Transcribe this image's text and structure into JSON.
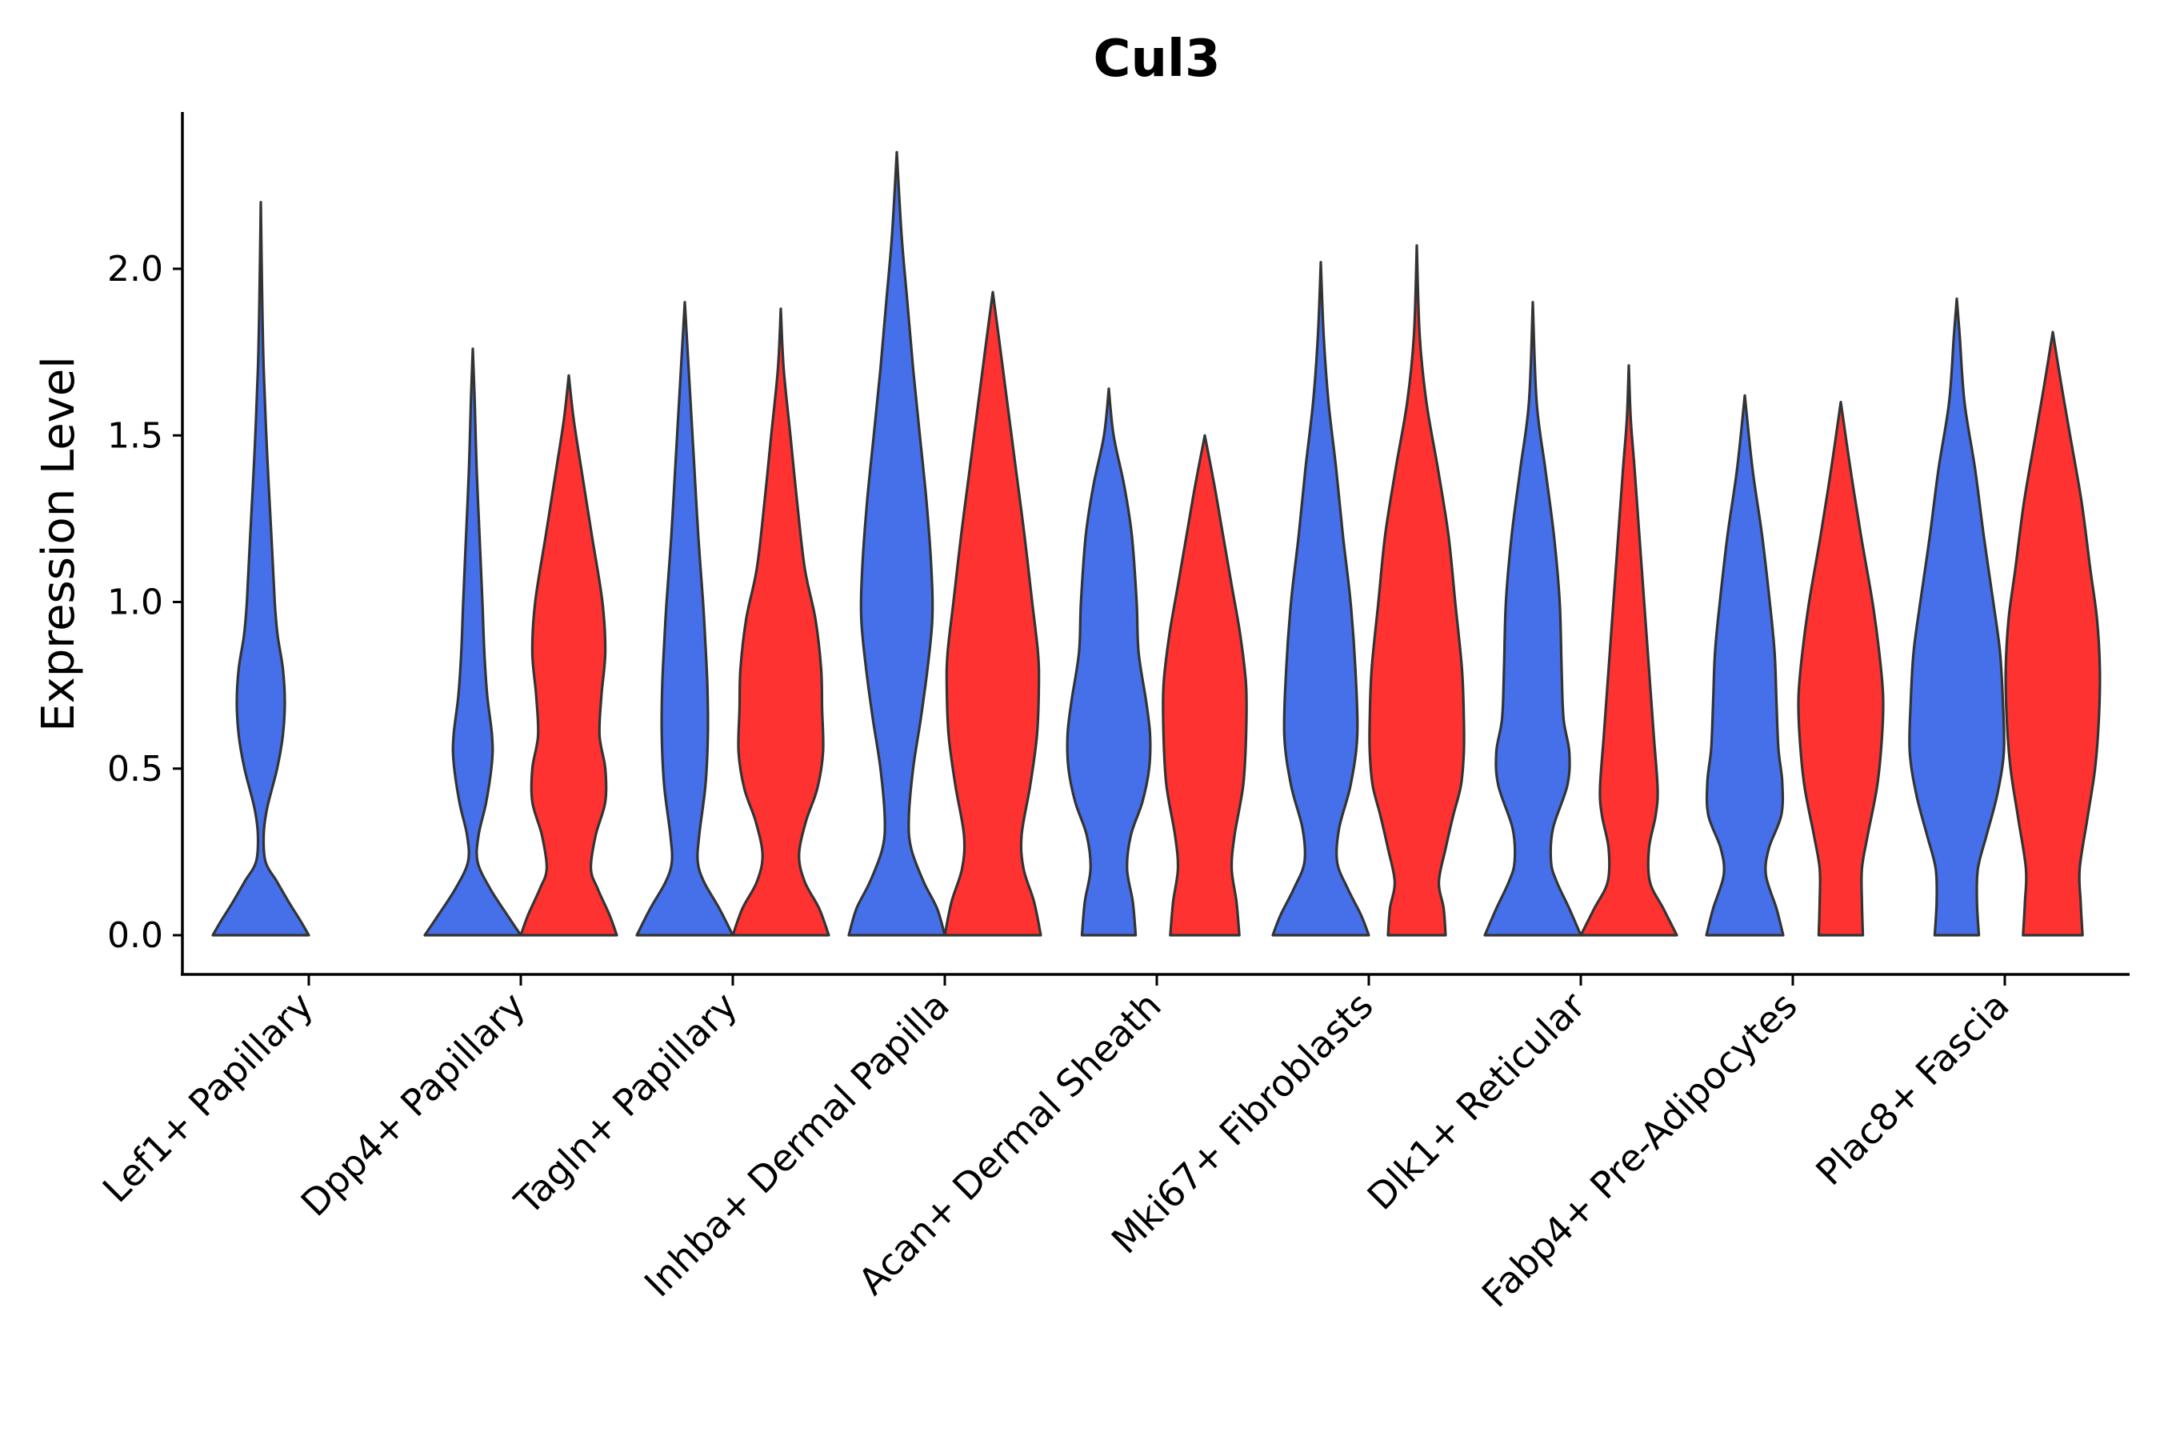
{
  "chart_data": {
    "type": "violin",
    "title": "Cul3",
    "xlabel": "",
    "ylabel": "Expression Level",
    "ylim": [
      -0.12,
      2.45
    ],
    "yticks": [
      0.0,
      0.5,
      1.0,
      1.5,
      2.0
    ],
    "ytick_labels": [
      "0.0",
      "0.5",
      "1.0",
      "1.5",
      "2.0"
    ],
    "legend": "none",
    "grid": false,
    "colors": {
      "group_a": "#4570EA",
      "group_b": "#FF3232",
      "outline": "#333333"
    },
    "categories": [
      "Lef1+ Papillary",
      "Dpp4+ Papillary",
      "Tagln+ Papillary",
      "Inhba+ Dermal Papilla",
      "Acan+ Dermal Sheath",
      "Mki67+ Fibroblasts",
      "Dlk1+ Reticular",
      "Fabp4+ Pre-Adipocytes",
      "Plac8+ Fascia"
    ],
    "violins": [
      {
        "category": "Lef1+ Papillary",
        "group": "a",
        "max": 2.2,
        "profile": [
          [
            0,
            1
          ],
          [
            0.04,
            0.84
          ],
          [
            0.1,
            0.58
          ],
          [
            0.16,
            0.34
          ],
          [
            0.22,
            0.1
          ],
          [
            0.3,
            0.06
          ],
          [
            0.38,
            0.13
          ],
          [
            0.5,
            0.34
          ],
          [
            0.6,
            0.46
          ],
          [
            0.7,
            0.5
          ],
          [
            0.8,
            0.46
          ],
          [
            0.9,
            0.35
          ],
          [
            1.0,
            0.29
          ],
          [
            1.2,
            0.22
          ],
          [
            1.45,
            0.13
          ],
          [
            1.7,
            0.06
          ],
          [
            1.9,
            0.03
          ],
          [
            2.2,
            0
          ]
        ]
      },
      {
        "category": "Dpp4+ Papillary",
        "group": "a",
        "max": 1.76,
        "profile": [
          [
            0,
            1
          ],
          [
            0.06,
            0.72
          ],
          [
            0.14,
            0.36
          ],
          [
            0.22,
            0.1
          ],
          [
            0.3,
            0.12
          ],
          [
            0.4,
            0.28
          ],
          [
            0.52,
            0.4
          ],
          [
            0.6,
            0.4
          ],
          [
            0.72,
            0.3
          ],
          [
            0.85,
            0.24
          ],
          [
            1.0,
            0.2
          ],
          [
            1.2,
            0.14
          ],
          [
            1.4,
            0.08
          ],
          [
            1.6,
            0.04
          ],
          [
            1.76,
            0
          ]
        ]
      },
      {
        "category": "Dpp4+ Papillary",
        "group": "b",
        "max": 1.68,
        "profile": [
          [
            0,
            1
          ],
          [
            0.06,
            0.85
          ],
          [
            0.14,
            0.6
          ],
          [
            0.2,
            0.46
          ],
          [
            0.3,
            0.56
          ],
          [
            0.4,
            0.76
          ],
          [
            0.5,
            0.76
          ],
          [
            0.6,
            0.64
          ],
          [
            0.72,
            0.68
          ],
          [
            0.85,
            0.76
          ],
          [
            1.0,
            0.7
          ],
          [
            1.2,
            0.48
          ],
          [
            1.4,
            0.26
          ],
          [
            1.55,
            0.1
          ],
          [
            1.68,
            0
          ]
        ]
      },
      {
        "category": "Tagln+ Papillary",
        "group": "a",
        "max": 1.9,
        "profile": [
          [
            0,
            1
          ],
          [
            0.08,
            0.72
          ],
          [
            0.16,
            0.4
          ],
          [
            0.22,
            0.27
          ],
          [
            0.3,
            0.3
          ],
          [
            0.45,
            0.43
          ],
          [
            0.6,
            0.48
          ],
          [
            0.75,
            0.47
          ],
          [
            0.9,
            0.42
          ],
          [
            1.0,
            0.38
          ],
          [
            1.2,
            0.28
          ],
          [
            1.4,
            0.2
          ],
          [
            1.6,
            0.12
          ],
          [
            1.8,
            0.04
          ],
          [
            1.9,
            0
          ]
        ]
      },
      {
        "category": "Tagln+ Papillary",
        "group": "b",
        "max": 1.88,
        "profile": [
          [
            0,
            1
          ],
          [
            0.08,
            0.8
          ],
          [
            0.16,
            0.5
          ],
          [
            0.24,
            0.38
          ],
          [
            0.34,
            0.52
          ],
          [
            0.44,
            0.76
          ],
          [
            0.55,
            0.88
          ],
          [
            0.68,
            0.86
          ],
          [
            0.8,
            0.84
          ],
          [
            0.95,
            0.72
          ],
          [
            1.1,
            0.5
          ],
          [
            1.3,
            0.34
          ],
          [
            1.5,
            0.2
          ],
          [
            1.7,
            0.06
          ],
          [
            1.88,
            0
          ]
        ]
      },
      {
        "category": "Inhba+ Dermal Papilla",
        "group": "a",
        "max": 2.35,
        "profile": [
          [
            0,
            1
          ],
          [
            0.08,
            0.84
          ],
          [
            0.16,
            0.56
          ],
          [
            0.26,
            0.3
          ],
          [
            0.35,
            0.25
          ],
          [
            0.5,
            0.34
          ],
          [
            0.65,
            0.5
          ],
          [
            0.8,
            0.64
          ],
          [
            0.95,
            0.74
          ],
          [
            1.1,
            0.72
          ],
          [
            1.3,
            0.62
          ],
          [
            1.5,
            0.48
          ],
          [
            1.7,
            0.34
          ],
          [
            1.9,
            0.22
          ],
          [
            2.1,
            0.1
          ],
          [
            2.35,
            0
          ]
        ]
      },
      {
        "category": "Inhba+ Dermal Papilla",
        "group": "b",
        "max": 1.93,
        "profile": [
          [
            0,
            1
          ],
          [
            0.1,
            0.86
          ],
          [
            0.2,
            0.64
          ],
          [
            0.3,
            0.6
          ],
          [
            0.45,
            0.78
          ],
          [
            0.6,
            0.92
          ],
          [
            0.75,
            0.96
          ],
          [
            0.85,
            0.94
          ],
          [
            1.0,
            0.82
          ],
          [
            1.2,
            0.66
          ],
          [
            1.4,
            0.48
          ],
          [
            1.6,
            0.3
          ],
          [
            1.8,
            0.12
          ],
          [
            1.93,
            0
          ]
        ]
      },
      {
        "category": "Acan+ Dermal Sheath",
        "group": "a",
        "max": 1.64,
        "profile": [
          [
            0,
            0.56
          ],
          [
            0.1,
            0.5
          ],
          [
            0.2,
            0.38
          ],
          [
            0.3,
            0.46
          ],
          [
            0.4,
            0.7
          ],
          [
            0.5,
            0.84
          ],
          [
            0.6,
            0.86
          ],
          [
            0.7,
            0.78
          ],
          [
            0.85,
            0.62
          ],
          [
            1.0,
            0.58
          ],
          [
            1.2,
            0.48
          ],
          [
            1.35,
            0.32
          ],
          [
            1.5,
            0.1
          ],
          [
            1.64,
            0
          ]
        ]
      },
      {
        "category": "Acan+ Dermal Sheath",
        "group": "b",
        "max": 1.5,
        "profile": [
          [
            0,
            0.72
          ],
          [
            0.1,
            0.66
          ],
          [
            0.2,
            0.56
          ],
          [
            0.3,
            0.62
          ],
          [
            0.45,
            0.8
          ],
          [
            0.6,
            0.86
          ],
          [
            0.75,
            0.86
          ],
          [
            0.9,
            0.74
          ],
          [
            1.05,
            0.56
          ],
          [
            1.2,
            0.38
          ],
          [
            1.35,
            0.2
          ],
          [
            1.5,
            0
          ]
        ]
      },
      {
        "category": "Mki67+ Fibroblasts",
        "group": "a",
        "max": 2.02,
        "profile": [
          [
            0,
            1
          ],
          [
            0.06,
            0.84
          ],
          [
            0.14,
            0.56
          ],
          [
            0.22,
            0.34
          ],
          [
            0.32,
            0.38
          ],
          [
            0.45,
            0.62
          ],
          [
            0.6,
            0.76
          ],
          [
            0.8,
            0.72
          ],
          [
            1.0,
            0.62
          ],
          [
            1.2,
            0.46
          ],
          [
            1.4,
            0.32
          ],
          [
            1.6,
            0.16
          ],
          [
            1.8,
            0.06
          ],
          [
            2.02,
            0
          ]
        ]
      },
      {
        "category": "Mki67+ Fibroblasts",
        "group": "b",
        "max": 2.07,
        "profile": [
          [
            0,
            0.6
          ],
          [
            0.08,
            0.56
          ],
          [
            0.16,
            0.46
          ],
          [
            0.26,
            0.6
          ],
          [
            0.36,
            0.76
          ],
          [
            0.45,
            0.92
          ],
          [
            0.55,
            0.98
          ],
          [
            0.65,
            0.98
          ],
          [
            0.8,
            0.94
          ],
          [
            1.0,
            0.8
          ],
          [
            1.2,
            0.66
          ],
          [
            1.4,
            0.44
          ],
          [
            1.6,
            0.2
          ],
          [
            1.8,
            0.06
          ],
          [
            2.07,
            0
          ]
        ]
      },
      {
        "category": "Dlk1+ Reticular",
        "group": "a",
        "max": 1.9,
        "profile": [
          [
            0,
            1
          ],
          [
            0.08,
            0.76
          ],
          [
            0.16,
            0.5
          ],
          [
            0.22,
            0.38
          ],
          [
            0.32,
            0.42
          ],
          [
            0.45,
            0.72
          ],
          [
            0.55,
            0.76
          ],
          [
            0.65,
            0.64
          ],
          [
            0.8,
            0.6
          ],
          [
            1.0,
            0.56
          ],
          [
            1.2,
            0.44
          ],
          [
            1.4,
            0.26
          ],
          [
            1.6,
            0.08
          ],
          [
            1.9,
            0
          ]
        ]
      },
      {
        "category": "Dlk1+ Reticular",
        "group": "b",
        "max": 1.71,
        "profile": [
          [
            0,
            1
          ],
          [
            0.08,
            0.72
          ],
          [
            0.16,
            0.44
          ],
          [
            0.26,
            0.42
          ],
          [
            0.36,
            0.56
          ],
          [
            0.44,
            0.6
          ],
          [
            0.6,
            0.52
          ],
          [
            0.8,
            0.42
          ],
          [
            1.0,
            0.32
          ],
          [
            1.2,
            0.22
          ],
          [
            1.4,
            0.12
          ],
          [
            1.55,
            0.04
          ],
          [
            1.71,
            0
          ]
        ]
      },
      {
        "category": "Fabp4+ Pre-Adipocytes",
        "group": "a",
        "max": 1.62,
        "profile": [
          [
            0,
            0.8
          ],
          [
            0.08,
            0.66
          ],
          [
            0.18,
            0.44
          ],
          [
            0.26,
            0.5
          ],
          [
            0.36,
            0.76
          ],
          [
            0.46,
            0.78
          ],
          [
            0.56,
            0.7
          ],
          [
            0.7,
            0.66
          ],
          [
            0.85,
            0.62
          ],
          [
            1.0,
            0.52
          ],
          [
            1.2,
            0.36
          ],
          [
            1.4,
            0.16
          ],
          [
            1.62,
            0
          ]
        ]
      },
      {
        "category": "Fabp4+ Pre-Adipocytes",
        "group": "b",
        "max": 1.6,
        "profile": [
          [
            0,
            0.46
          ],
          [
            0.1,
            0.44
          ],
          [
            0.2,
            0.44
          ],
          [
            0.3,
            0.56
          ],
          [
            0.45,
            0.76
          ],
          [
            0.6,
            0.86
          ],
          [
            0.72,
            0.88
          ],
          [
            0.85,
            0.8
          ],
          [
            1.0,
            0.66
          ],
          [
            1.2,
            0.42
          ],
          [
            1.4,
            0.2
          ],
          [
            1.6,
            0
          ]
        ]
      },
      {
        "category": "Plac8+ Fascia",
        "group": "a",
        "max": 1.91,
        "profile": [
          [
            0,
            0.46
          ],
          [
            0.1,
            0.42
          ],
          [
            0.2,
            0.44
          ],
          [
            0.3,
            0.62
          ],
          [
            0.42,
            0.84
          ],
          [
            0.55,
            0.98
          ],
          [
            0.7,
            0.96
          ],
          [
            0.85,
            0.9
          ],
          [
            1.0,
            0.76
          ],
          [
            1.2,
            0.56
          ],
          [
            1.4,
            0.38
          ],
          [
            1.6,
            0.16
          ],
          [
            1.8,
            0.06
          ],
          [
            1.91,
            0
          ]
        ]
      },
      {
        "category": "Plac8+ Fascia",
        "group": "b",
        "max": 1.81,
        "profile": [
          [
            0,
            0.62
          ],
          [
            0.1,
            0.58
          ],
          [
            0.2,
            0.56
          ],
          [
            0.35,
            0.72
          ],
          [
            0.5,
            0.88
          ],
          [
            0.65,
            0.96
          ],
          [
            0.8,
            0.98
          ],
          [
            0.95,
            0.92
          ],
          [
            1.1,
            0.78
          ],
          [
            1.3,
            0.6
          ],
          [
            1.5,
            0.36
          ],
          [
            1.65,
            0.18
          ],
          [
            1.81,
            0
          ]
        ]
      }
    ]
  }
}
